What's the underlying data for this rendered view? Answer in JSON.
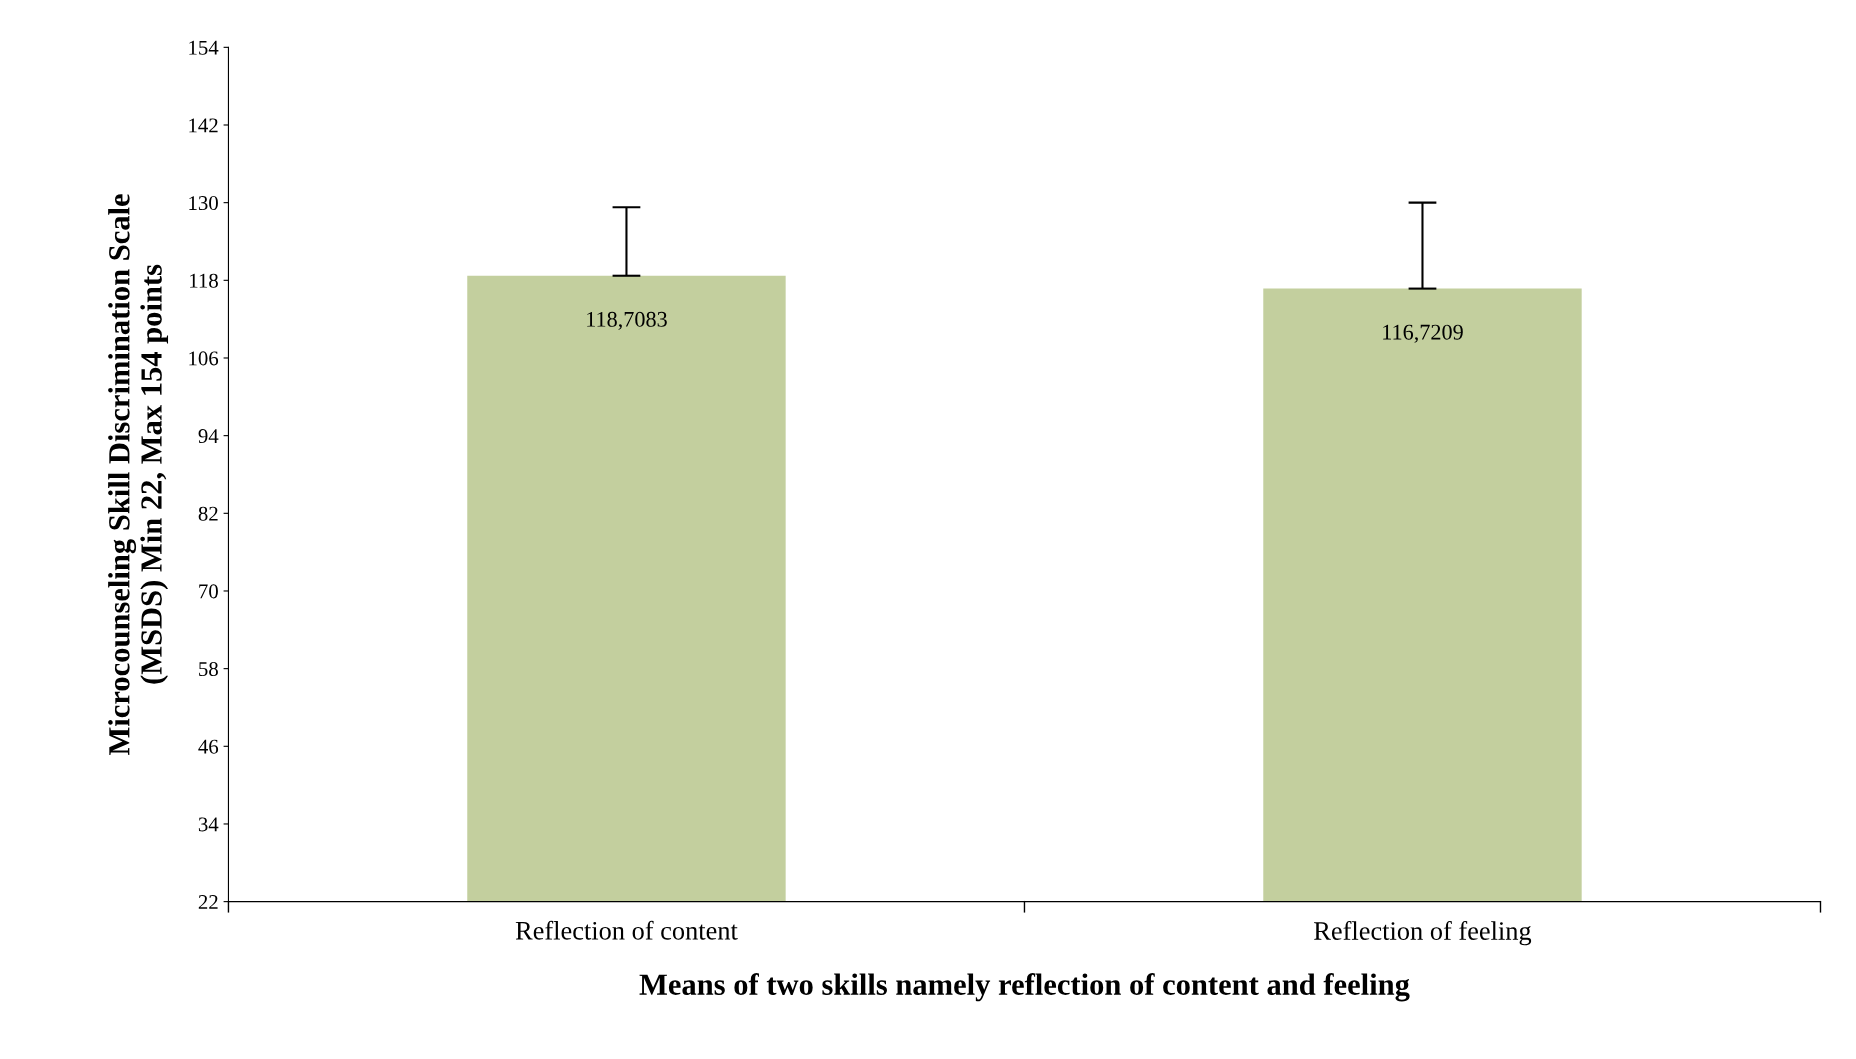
{
  "chart_data": {
    "type": "bar",
    "xlabel": "Means of two skills namely reflection of content and feeling",
    "ylabel": "Microcounseling Skill Discrimination Scale\n(MSDS) Min 22, Max 154 points",
    "categories": [
      "Reflection of content",
      "Reflection of feeling"
    ],
    "values": [
      118.7083,
      116.7209
    ],
    "value_labels": [
      "118,7083",
      "116,7209"
    ],
    "errors": [
      [
        118.7083,
        129.3
      ],
      [
        116.7209,
        130.0
      ]
    ],
    "color": "#c3cf9e",
    "ylim": [
      22,
      154
    ],
    "yticks": [
      22,
      34,
      46,
      58,
      70,
      82,
      94,
      106,
      118,
      130,
      142,
      154
    ],
    "grid": false,
    "legend": false
  }
}
